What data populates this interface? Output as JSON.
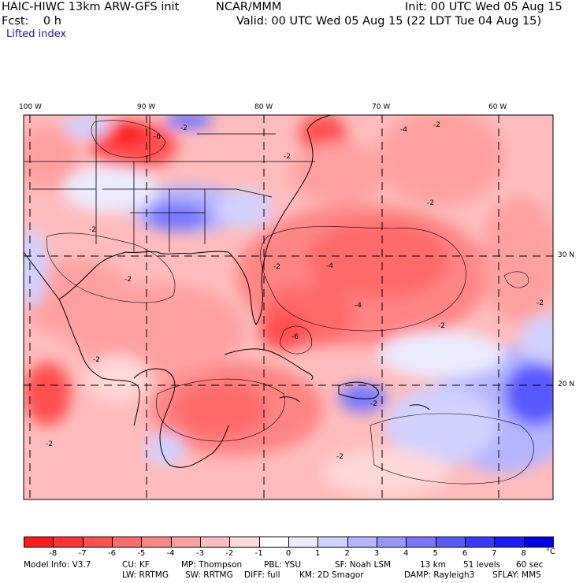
{
  "header": {
    "model": "HAIC-HIWC 13km ARW-GFS init",
    "org": "NCAR/MMM",
    "init": "Init: 00 UTC Wed 05 Aug 15",
    "fcst": "Fcst:    0 h",
    "valid": "Valid: 00 UTC Wed 05 Aug 15 (22 LDT Tue 04 Aug 15)",
    "field": "Lifted index"
  },
  "map": {
    "lon_labels": [
      "100 W",
      "90 W",
      "80 W",
      "70 W",
      "60 W"
    ],
    "lat_labels": [
      "30 N",
      "20 N"
    ],
    "contour_label": "-2",
    "contour_labels_other": [
      "-4",
      "-6"
    ]
  },
  "colorbar": {
    "labels": [
      "-8",
      "-7",
      "-6",
      "-5",
      "-4",
      "-3",
      "-2",
      "-1",
      "0",
      "1",
      "2",
      "3",
      "4",
      "5",
      "6",
      "7",
      "8"
    ],
    "unit": "°C",
    "colors": [
      "#ff1a1a",
      "#ff3333",
      "#ff4f4f",
      "#ff6b6b",
      "#ff8585",
      "#ffa0a0",
      "#ffbcbc",
      "#ffd8d8",
      "#ffffff",
      "#ececff",
      "#d2d2ff",
      "#b5b5ff",
      "#9696ff",
      "#7777ff",
      "#5858ff",
      "#3939ff",
      "#1a1aff",
      "#0000e6"
    ]
  },
  "footer": {
    "line1": [
      "Model Info: V3.7",
      "CU: KF",
      "MP: Thompson",
      "PBL: YSU",
      "SF: Noah LSM",
      "13 km",
      "51 levels",
      "60 sec"
    ],
    "line2": [
      "LW: RRTMG",
      "SW: RRTMG",
      "DIFF: full",
      "KM: 2D Smagor",
      "DAMP: Rayleigh3",
      "SFLAY: MM5"
    ]
  }
}
